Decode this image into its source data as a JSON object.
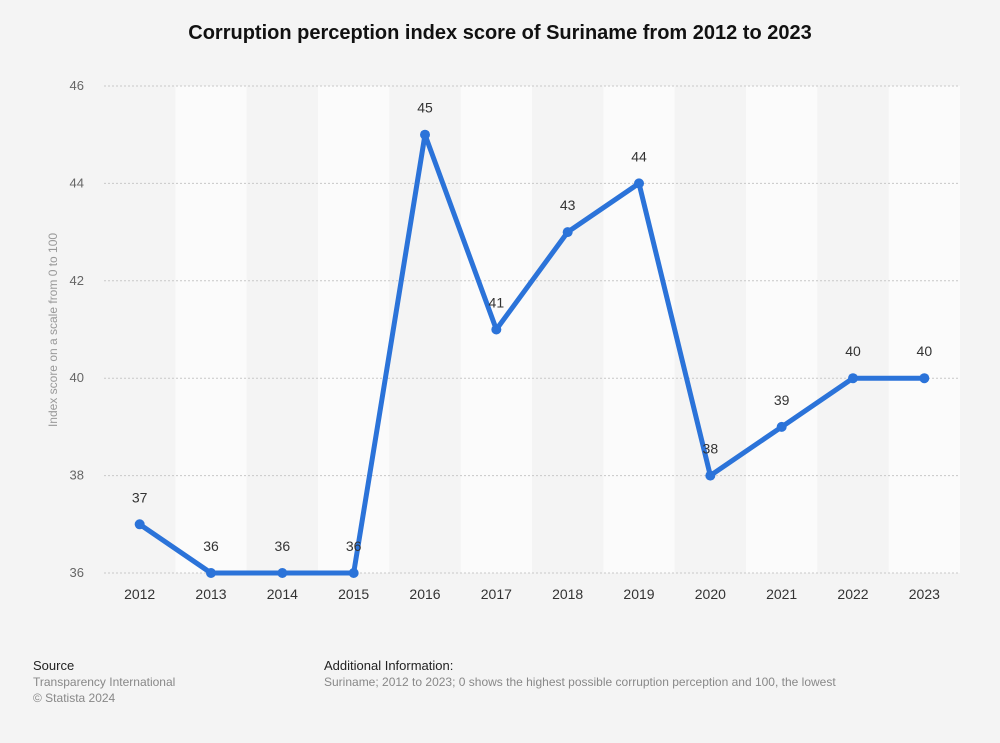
{
  "chart_data": {
    "type": "line",
    "title": "Corruption perception index score of Suriname from 2012 to 2023",
    "ylabel": "Index score on a scale from 0 to 100",
    "xlabel": "",
    "categories": [
      "2012",
      "2013",
      "2014",
      "2015",
      "2016",
      "2017",
      "2018",
      "2019",
      "2020",
      "2021",
      "2022",
      "2023"
    ],
    "values": [
      37,
      36,
      36,
      36,
      45,
      41,
      43,
      44,
      38,
      39,
      40,
      40
    ],
    "ylim": [
      36,
      46
    ],
    "yticks": [
      36,
      38,
      40,
      42,
      44,
      46
    ],
    "grid": true,
    "line_color": "#2b73d9"
  },
  "footer": {
    "source_heading": "Source",
    "source_lines": [
      "Transparency International",
      "© Statista 2024"
    ],
    "info_heading": "Additional Information:",
    "info_text": "Suriname; 2012 to 2023; 0 shows the highest possible corruption perception and 100, the lowest"
  }
}
